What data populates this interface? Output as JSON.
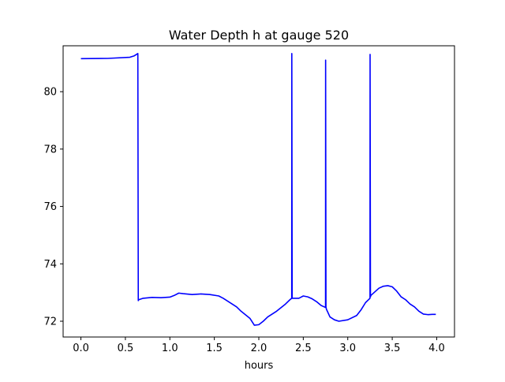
{
  "chart_data": {
    "type": "line",
    "title": "Water Depth h at gauge 520",
    "xlabel": "hours",
    "ylabel": "",
    "xlim": [
      -0.2,
      4.2
    ],
    "ylim": [
      71.45,
      81.6
    ],
    "grid": false,
    "legend": "none",
    "xticks": [
      0.0,
      0.5,
      1.0,
      1.5,
      2.0,
      2.5,
      3.0,
      3.5,
      4.0
    ],
    "xtick_labels": [
      "0.0",
      "0.5",
      "1.0",
      "1.5",
      "2.0",
      "2.5",
      "3.0",
      "3.5",
      "4.0"
    ],
    "yticks": [
      72,
      74,
      76,
      78,
      80
    ],
    "ytick_labels": [
      "72",
      "74",
      "76",
      "78",
      "80"
    ],
    "series": [
      {
        "color": "#0000ff",
        "x": [
          0.0,
          0.3,
          0.55,
          0.6,
          0.64,
          0.645,
          0.65,
          0.7,
          0.8,
          0.9,
          1.0,
          1.05,
          1.1,
          1.15,
          1.25,
          1.35,
          1.45,
          1.55,
          1.6,
          1.7,
          1.75,
          1.8,
          1.9,
          1.95,
          2.0,
          2.05,
          2.1,
          2.2,
          2.3,
          2.35,
          2.37,
          2.371,
          2.375,
          2.38,
          2.45,
          2.5,
          2.55,
          2.6,
          2.65,
          2.7,
          2.75,
          2.751,
          2.755,
          2.76,
          2.8,
          2.85,
          2.9,
          3.0,
          3.1,
          3.15,
          3.2,
          3.25,
          3.251,
          3.255,
          3.26,
          3.35,
          3.4,
          3.45,
          3.5,
          3.55,
          3.6,
          3.65,
          3.7,
          3.75,
          3.8,
          3.85,
          3.9,
          3.95,
          3.99
        ],
        "y": [
          81.15,
          81.16,
          81.2,
          81.25,
          81.33,
          72.72,
          72.75,
          72.8,
          72.83,
          72.82,
          72.84,
          72.9,
          72.98,
          72.96,
          72.93,
          72.95,
          72.93,
          72.88,
          72.8,
          72.6,
          72.5,
          72.35,
          72.1,
          71.86,
          71.88,
          72.0,
          72.15,
          72.35,
          72.6,
          72.75,
          72.8,
          81.33,
          72.8,
          72.8,
          72.8,
          72.88,
          72.85,
          72.78,
          72.68,
          72.55,
          72.48,
          81.1,
          72.5,
          72.42,
          72.15,
          72.05,
          72.0,
          72.05,
          72.2,
          72.4,
          72.65,
          72.8,
          81.3,
          72.85,
          72.9,
          73.15,
          73.22,
          73.24,
          73.2,
          73.05,
          72.85,
          72.75,
          72.6,
          72.5,
          72.35,
          72.25,
          72.23,
          72.24,
          72.24
        ]
      }
    ]
  }
}
